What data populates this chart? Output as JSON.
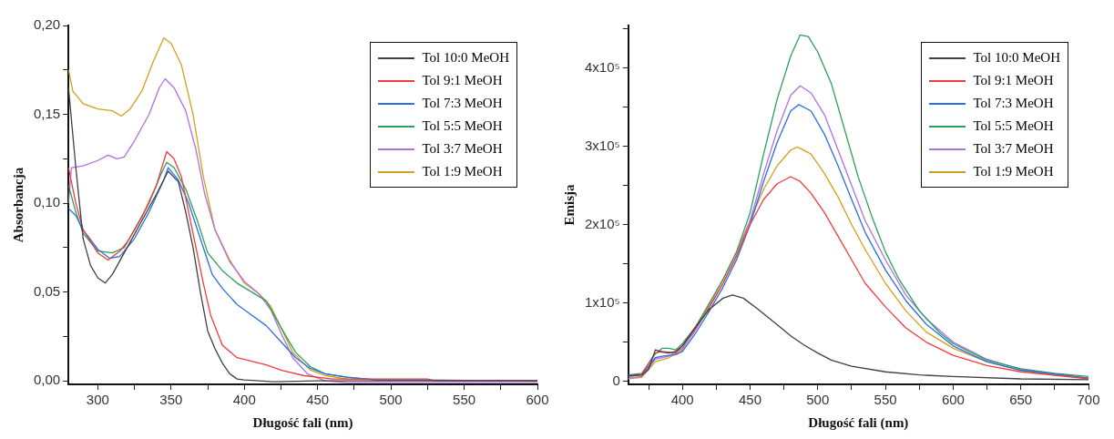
{
  "chart_data": [
    {
      "type": "line",
      "xlabel": "Długość fali (nm)",
      "ylabel": "Absorbancja",
      "xlim": [
        280,
        600
      ],
      "ylim": [
        -0.002,
        0.2
      ],
      "legend": "top right",
      "marker": "none",
      "line_style": "solid",
      "grid": false,
      "xticks": [
        300,
        {
          "value": 325,
          "label": null
        },
        350,
        {
          "value": 375,
          "label": null
        },
        400,
        {
          "value": 425,
          "label": null
        },
        450,
        {
          "value": 475,
          "label": null
        },
        500,
        {
          "value": 525,
          "label": null
        },
        550,
        {
          "value": 575,
          "label": null
        },
        600
      ],
      "yticks": [
        {
          "value": 0,
          "label": "0,00"
        },
        {
          "value": 0.025,
          "label": null
        },
        {
          "value": 0.05,
          "label": "0,05"
        },
        {
          "value": 0.075,
          "label": null
        },
        {
          "value": 0.1,
          "label": "0,10"
        },
        {
          "value": 0.125,
          "label": null
        },
        {
          "value": 0.15,
          "label": "0,15"
        },
        {
          "value": 0.175,
          "label": null
        },
        {
          "value": 0.2,
          "label": "0,20"
        }
      ],
      "series": [
        {
          "name": "Tol 10:0 MeOH",
          "color": "#404040",
          "x": [
            280,
            285,
            290,
            295,
            300,
            305,
            310,
            320,
            330,
            340,
            348,
            355,
            360,
            365,
            370,
            375,
            380,
            385,
            390,
            395,
            400,
            420,
            450,
            500,
            600
          ],
          "values": [
            0.165,
            0.12,
            0.08,
            0.065,
            0.058,
            0.055,
            0.06,
            0.075,
            0.09,
            0.105,
            0.118,
            0.112,
            0.095,
            0.075,
            0.05,
            0.028,
            0.018,
            0.01,
            0.004,
            0.001,
            0.0005,
            -0.0005,
            0,
            0,
            0
          ]
        },
        {
          "name": "Tol 9:1 MeOH",
          "color": "#f03c3c",
          "x": [
            280,
            285,
            290,
            300,
            307,
            315,
            320,
            330,
            340,
            347,
            352,
            357,
            362,
            367,
            372,
            377,
            385,
            395,
            405,
            415,
            425,
            440,
            460,
            525,
            530,
            600
          ],
          "values": [
            0.12,
            0.1,
            0.085,
            0.072,
            0.068,
            0.073,
            0.078,
            0.092,
            0.11,
            0.129,
            0.125,
            0.115,
            0.095,
            0.075,
            0.055,
            0.037,
            0.02,
            0.013,
            0.011,
            0.009,
            0.006,
            0.003,
            0.001,
            0.001,
            0,
            0
          ]
        },
        {
          "name": "Tol 7:3 MeOH",
          "color": "#2a6ee6",
          "x": [
            280,
            285,
            290,
            300,
            308,
            315,
            325,
            335,
            345,
            348,
            355,
            362,
            370,
            378,
            385,
            395,
            405,
            415,
            425,
            435,
            445,
            455,
            470,
            490,
            600
          ],
          "values": [
            0.097,
            0.093,
            0.085,
            0.074,
            0.069,
            0.07,
            0.08,
            0.095,
            0.113,
            0.12,
            0.113,
            0.1,
            0.08,
            0.06,
            0.052,
            0.043,
            0.037,
            0.031,
            0.022,
            0.013,
            0.007,
            0.004,
            0.002,
            0.0005,
            0
          ]
        },
        {
          "name": "Tol 5:5 MeOH",
          "color": "#2ca05a",
          "x": [
            280,
            285,
            290,
            300,
            310,
            318,
            325,
            335,
            343,
            347,
            352,
            360,
            368,
            375,
            385,
            395,
            405,
            415,
            425,
            435,
            445,
            455,
            470,
            490,
            600
          ],
          "values": [
            0.11,
            0.095,
            0.083,
            0.073,
            0.072,
            0.075,
            0.085,
            0.1,
            0.116,
            0.123,
            0.12,
            0.108,
            0.09,
            0.072,
            0.062,
            0.055,
            0.05,
            0.045,
            0.03,
            0.016,
            0.008,
            0.004,
            0.002,
            0.0005,
            0
          ]
        },
        {
          "name": "Tol 3:7 MeOH",
          "color": "#b070e0",
          "x": [
            280,
            282,
            290,
            300,
            307,
            313,
            318,
            325,
            335,
            342,
            346,
            352,
            360,
            367,
            373,
            380,
            390,
            400,
            410,
            418,
            425,
            433,
            443,
            455,
            470,
            600
          ],
          "values": [
            0.1,
            0.12,
            0.121,
            0.124,
            0.127,
            0.125,
            0.126,
            0.135,
            0.15,
            0.165,
            0.17,
            0.165,
            0.152,
            0.13,
            0.105,
            0.085,
            0.067,
            0.056,
            0.049,
            0.04,
            0.027,
            0.013,
            0.004,
            0,
            -0.001,
            -0.001
          ]
        },
        {
          "name": "Tol 1:9 MeOH",
          "color": "#d4a017",
          "x": [
            280,
            283,
            290,
            300,
            310,
            316,
            322,
            330,
            338,
            345,
            350,
            357,
            365,
            372,
            380,
            390,
            400,
            410,
            418,
            425,
            433,
            445,
            455,
            470,
            500,
            600
          ],
          "values": [
            0.175,
            0.163,
            0.156,
            0.153,
            0.152,
            0.149,
            0.153,
            0.163,
            0.18,
            0.193,
            0.19,
            0.178,
            0.15,
            0.115,
            0.085,
            0.068,
            0.055,
            0.049,
            0.042,
            0.03,
            0.016,
            0.006,
            0.003,
            0.001,
            0.0005,
            0
          ]
        }
      ]
    },
    {
      "type": "line",
      "xlabel": "Długość fali (nm)",
      "ylabel": "Emisja",
      "xlim": [
        360,
        700
      ],
      "ylim": [
        -4000,
        454000
      ],
      "legend": "top right",
      "marker": "none",
      "line_style": "solid",
      "grid": false,
      "xticks": [
        {
          "value": 375,
          "label": null
        },
        400,
        {
          "value": 425,
          "label": null
        },
        450,
        {
          "value": 475,
          "label": null
        },
        500,
        {
          "value": 525,
          "label": null
        },
        550,
        {
          "value": 575,
          "label": null
        },
        600,
        {
          "value": 625,
          "label": null
        },
        650,
        {
          "value": 675,
          "label": null
        },
        700
      ],
      "yticks": [
        0,
        {
          "value": 50000,
          "label": null
        },
        {
          "value": 100000,
          "label": "1x10⁵"
        },
        {
          "value": 150000,
          "label": null
        },
        {
          "value": 200000,
          "label": "2x10⁵"
        },
        {
          "value": 250000,
          "label": null
        },
        {
          "value": 300000,
          "label": "3x10⁵"
        },
        {
          "value": 350000,
          "label": null
        },
        {
          "value": 400000,
          "label": "4x10⁵"
        },
        {
          "value": 450000,
          "label": null
        }
      ],
      "series": [
        {
          "name": "Tol 10:0 MeOH",
          "color": "#404040",
          "x": [
            360,
            370,
            375,
            380,
            385,
            390,
            395,
            400,
            410,
            420,
            430,
            437,
            445,
            455,
            470,
            480,
            490,
            500,
            510,
            525,
            550,
            575,
            600,
            650,
            700
          ],
          "values": [
            7000,
            8000,
            15000,
            40000,
            37000,
            36000,
            38000,
            45000,
            70000,
            92000,
            106000,
            110000,
            106000,
            93000,
            72000,
            58000,
            46000,
            36000,
            27000,
            19000,
            12000,
            8000,
            6000,
            3000,
            2000
          ]
        },
        {
          "name": "Tol 9:1 MeOH",
          "color": "#f03c3c",
          "x": [
            360,
            370,
            380,
            385,
            390,
            395,
            400,
            410,
            420,
            430,
            440,
            450,
            460,
            470,
            480,
            487,
            495,
            505,
            515,
            525,
            535,
            550,
            565,
            580,
            600,
            625,
            650,
            700
          ],
          "values": [
            7000,
            9000,
            36000,
            38000,
            37000,
            36000,
            45000,
            68000,
            95000,
            125000,
            160000,
            200000,
            232000,
            252000,
            261000,
            255000,
            240000,
            215000,
            185000,
            155000,
            125000,
            95000,
            68000,
            50000,
            33000,
            20000,
            12000,
            3000
          ]
        },
        {
          "name": "Tol 7:3 MeOH",
          "color": "#2a6ee6",
          "x": [
            360,
            370,
            380,
            385,
            390,
            395,
            400,
            410,
            420,
            430,
            440,
            450,
            460,
            470,
            480,
            486,
            495,
            505,
            515,
            525,
            535,
            550,
            565,
            580,
            600,
            625,
            650,
            700
          ],
          "values": [
            6000,
            8000,
            30000,
            32000,
            33000,
            34000,
            38000,
            62000,
            90000,
            120000,
            155000,
            200000,
            255000,
            305000,
            345000,
            353000,
            345000,
            315000,
            275000,
            232000,
            190000,
            142000,
            103000,
            73000,
            45000,
            25000,
            14000,
            4000
          ]
        },
        {
          "name": "Tol 5:5 MeOH",
          "color": "#2ca05a",
          "x": [
            360,
            370,
            380,
            385,
            390,
            395,
            400,
            410,
            420,
            430,
            440,
            450,
            460,
            470,
            480,
            487,
            493,
            500,
            510,
            520,
            530,
            540,
            550,
            560,
            575,
            590,
            600,
            625,
            650,
            675,
            700
          ],
          "values": [
            8000,
            10000,
            35000,
            42000,
            42000,
            40000,
            48000,
            70000,
            100000,
            130000,
            165000,
            215000,
            290000,
            360000,
            415000,
            442000,
            440000,
            420000,
            380000,
            320000,
            260000,
            210000,
            165000,
            130000,
            90000,
            62000,
            48000,
            27000,
            16000,
            10000,
            6000
          ]
        },
        {
          "name": "Tol 3:7 MeOH",
          "color": "#b070e0",
          "x": [
            360,
            370,
            380,
            390,
            400,
            410,
            420,
            430,
            440,
            450,
            460,
            470,
            480,
            487,
            495,
            505,
            515,
            525,
            535,
            550,
            565,
            580,
            600,
            625,
            650,
            700
          ],
          "values": [
            4000,
            6000,
            28000,
            32000,
            42000,
            66000,
            95000,
            125000,
            160000,
            205000,
            265000,
            320000,
            365000,
            377000,
            368000,
            340000,
            295000,
            250000,
            205000,
            155000,
            110000,
            80000,
            50000,
            28000,
            15000,
            4000
          ]
        },
        {
          "name": "Tol 1:9 MeOH",
          "color": "#d4a017",
          "x": [
            360,
            370,
            380,
            390,
            400,
            410,
            420,
            430,
            440,
            450,
            460,
            470,
            480,
            485,
            495,
            505,
            515,
            525,
            535,
            550,
            565,
            580,
            600,
            625,
            650,
            700
          ],
          "values": [
            3000,
            5000,
            25000,
            30000,
            40000,
            70000,
            98000,
            130000,
            165000,
            205000,
            245000,
            275000,
            295000,
            299000,
            290000,
            265000,
            235000,
            200000,
            168000,
            125000,
            90000,
            63000,
            42000,
            25000,
            14000,
            3000
          ]
        }
      ]
    }
  ]
}
